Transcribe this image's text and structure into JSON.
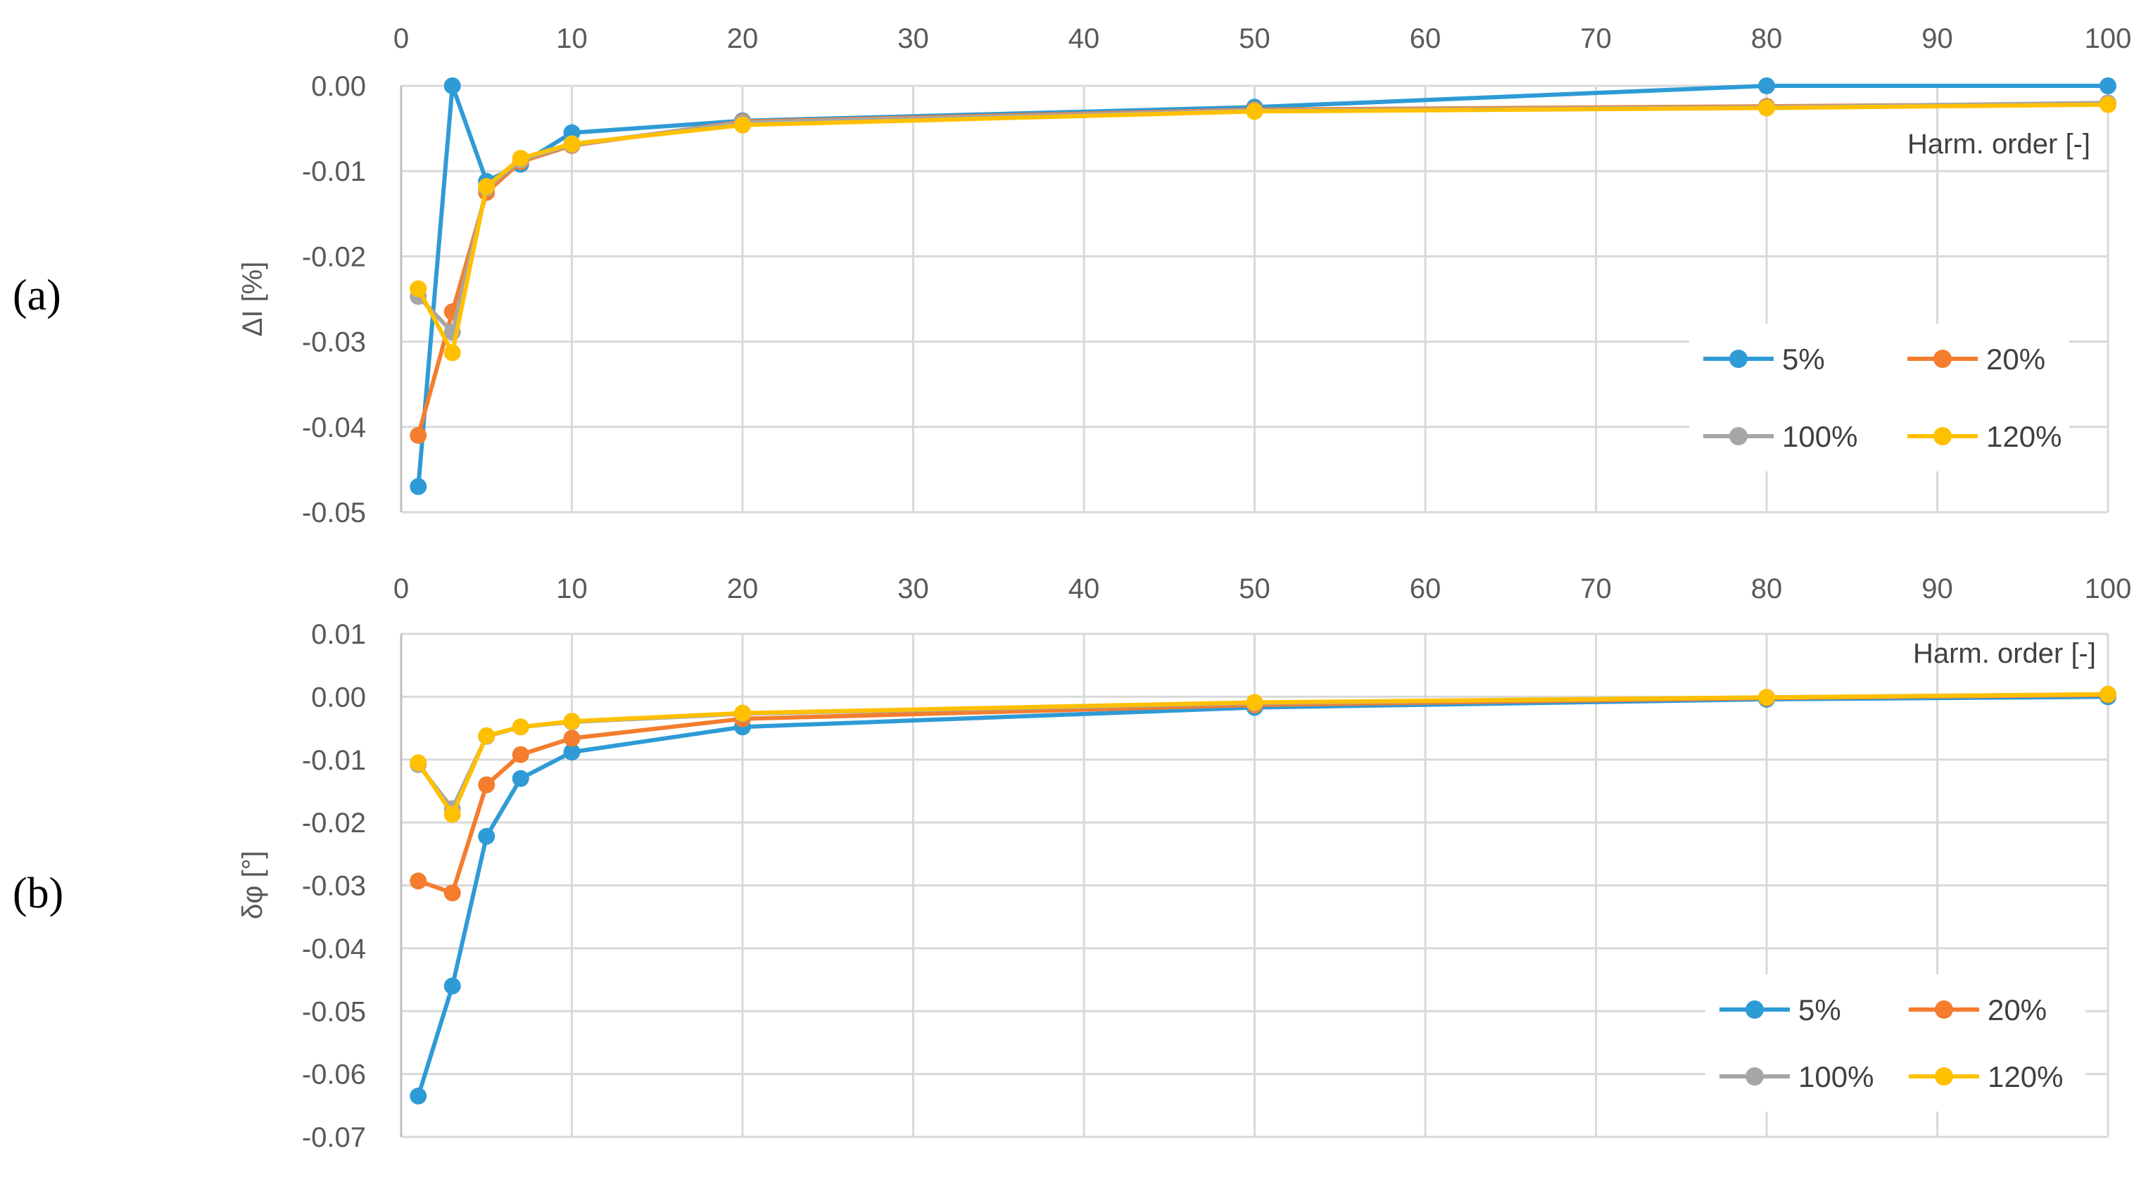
{
  "figure": {
    "panel_labels": [
      "(a)",
      "(b)"
    ]
  },
  "colors": {
    "5%": "#2E9BD6",
    "20%": "#F47D2E",
    "100%": "#A6A6A6",
    "120%": "#FFC000"
  },
  "chart_data": [
    {
      "type": "line",
      "panel": "(a)",
      "ylabel": "ΔI [%]",
      "xlabel": "Harm. order [-]",
      "xlim": [
        0,
        100
      ],
      "ylim": [
        -0.05,
        0.0
      ],
      "x_ticks": [
        "0",
        "10",
        "20",
        "30",
        "40",
        "50",
        "60",
        "70",
        "80",
        "90",
        "100"
      ],
      "y_ticks": [
        "0.00",
        "-0.01",
        "-0.02",
        "-0.03",
        "-0.04",
        "-0.05"
      ],
      "x_axis_position": "top",
      "grid": true,
      "legend_position": "bottom-right",
      "x": [
        1,
        3,
        5,
        7,
        10,
        20,
        50,
        80,
        100
      ],
      "series": [
        {
          "name": "5%",
          "values": [
            -0.047,
            0.0,
            -0.0112,
            -0.0092,
            -0.0055,
            -0.0041,
            -0.0025,
            0.0,
            0.0
          ]
        },
        {
          "name": "20%",
          "values": [
            -0.041,
            -0.0265,
            -0.0125,
            -0.0089,
            -0.007,
            -0.0042,
            -0.0028,
            -0.0024,
            -0.0021
          ]
        },
        {
          "name": "100%",
          "values": [
            -0.0247,
            -0.0289,
            -0.012,
            -0.0087,
            -0.0069,
            -0.0043,
            -0.0029,
            -0.0025,
            -0.002
          ]
        },
        {
          "name": "120%",
          "values": [
            -0.0238,
            -0.0313,
            -0.0118,
            -0.0085,
            -0.0068,
            -0.0046,
            -0.003,
            -0.0026,
            -0.0022
          ]
        }
      ]
    },
    {
      "type": "line",
      "panel": "(b)",
      "ylabel": "δφ [°]",
      "xlabel": "Harm. order [-]",
      "xlim": [
        0,
        100
      ],
      "ylim": [
        -0.07,
        0.01
      ],
      "x_ticks": [
        "0",
        "10",
        "20",
        "30",
        "40",
        "50",
        "60",
        "70",
        "80",
        "90",
        "100"
      ],
      "y_ticks": [
        "0.01",
        "0.00",
        "-0.01",
        "-0.02",
        "-0.03",
        "-0.04",
        "-0.05",
        "-0.06",
        "-0.07"
      ],
      "x_axis_position": "top",
      "grid": true,
      "legend_position": "bottom-right",
      "x": [
        1,
        3,
        5,
        7,
        10,
        20,
        50,
        80,
        100
      ],
      "series": [
        {
          "name": "5%",
          "values": [
            -0.0635,
            -0.046,
            -0.0222,
            -0.013,
            -0.0088,
            -0.0048,
            -0.0017,
            -0.0004,
            0.0
          ]
        },
        {
          "name": "20%",
          "values": [
            -0.0293,
            -0.0312,
            -0.014,
            -0.0092,
            -0.0066,
            -0.0035,
            -0.0013,
            -0.0002,
            0.0003
          ]
        },
        {
          "name": "100%",
          "values": [
            -0.0108,
            -0.0178,
            -0.0063,
            -0.0048,
            -0.004,
            -0.0027,
            -0.001,
            -0.0001,
            0.0004
          ]
        },
        {
          "name": "120%",
          "values": [
            -0.0105,
            -0.0187,
            -0.0062,
            -0.0048,
            -0.0039,
            -0.0026,
            -0.0009,
            -0.0001,
            0.0004
          ]
        }
      ]
    }
  ]
}
